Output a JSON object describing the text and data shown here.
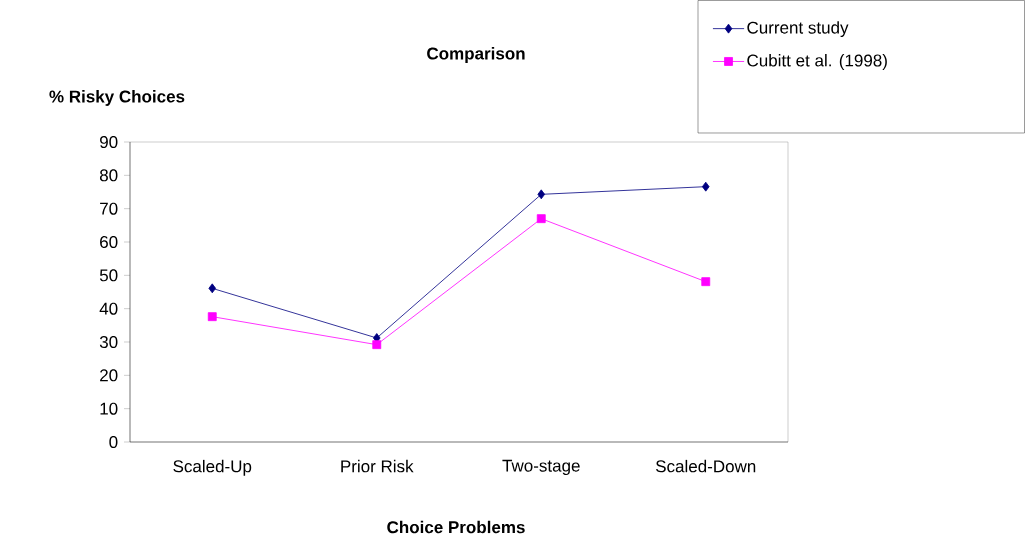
{
  "chart_data": {
    "type": "line",
    "title": "Comparison",
    "xlabel": "Choice Problems",
    "ylabel": "% Risky Choices",
    "categories": [
      "Scaled-Up",
      "Prior Risk",
      "Two-stage",
      "Scaled-Down"
    ],
    "series": [
      {
        "name": "Current study",
        "color": "#000080",
        "marker": "diamond",
        "values": [
          46.1,
          31.2,
          74.3,
          76.6
        ]
      },
      {
        "name": "Cubitt et al. (1998)",
        "color": "#ff00ff",
        "marker": "square",
        "values": [
          37.6,
          29.2,
          67.0,
          48.1
        ]
      }
    ],
    "ylim": [
      0,
      90
    ],
    "yticks": [
      0,
      10,
      20,
      30,
      40,
      50,
      60,
      70,
      80,
      90
    ],
    "grid": false,
    "legend": "top right",
    "line_style": "solid"
  }
}
